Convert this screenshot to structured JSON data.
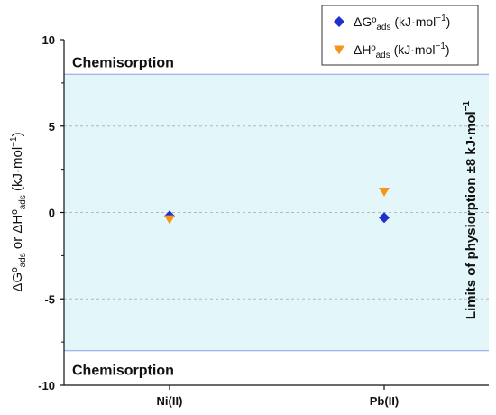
{
  "chart_data": {
    "type": "scatter",
    "categories": [
      "Ni(II)",
      "Pb(II)"
    ],
    "ylim": [
      -10,
      10
    ],
    "yticks": [
      10,
      5,
      0,
      -5,
      -10
    ],
    "ytick_labels": [
      "10",
      "5",
      "0",
      "-5",
      "-10"
    ],
    "grid": "horizontal dashed",
    "legend_position": "top-right",
    "ylabel": {
      "p1": "ΔGº",
      "s1": "ads",
      "p2": " or ΔHº",
      "s2": "ads",
      "p3": " (kJ·mol",
      "sup": "−1",
      "p4": ")"
    },
    "series": [
      {
        "key": "dG",
        "marker": "diamond",
        "color": "#1f2fd0",
        "legend": {
          "main": "ΔGº",
          "sub": "ads",
          "unit": " (kJ·mol",
          "sup": "−1",
          "end": ")"
        },
        "values": [
          -0.2,
          -0.3
        ]
      },
      {
        "key": "dH",
        "marker": "triangle-down",
        "color": "#f7941d",
        "legend": {
          "main": "ΔHº",
          "sub": "ads",
          "unit": " (kJ·mol",
          "sup": "−1",
          "end": ")"
        },
        "values": [
          -0.4,
          1.2
        ]
      }
    ],
    "physisorption_band": {
      "ymin": -8,
      "ymax": 8,
      "fill": "#e3f6fa",
      "line": "#8ea0e8"
    },
    "annotations": {
      "top": "Chemisorption",
      "bottom": "Chemisorption",
      "side_main": "Limits of physiorption ±8 kJ·mol",
      "side_sup": "−1"
    }
  }
}
